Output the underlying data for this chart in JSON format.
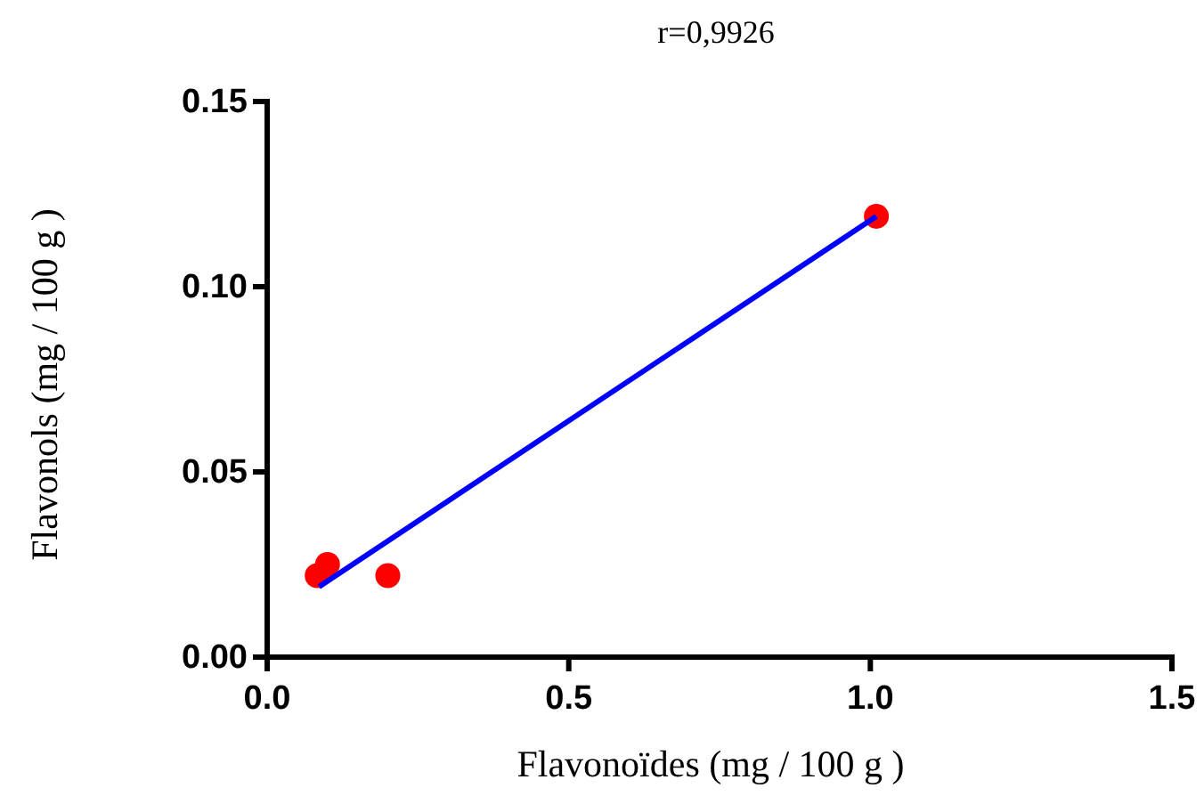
{
  "chart_data": {
    "type": "scatter",
    "title": "r=0,9926",
    "xlabel": "Flavonoïdes (mg / 100 g )",
    "ylabel": "Flavonols (mg / 100 g )",
    "xlim": [
      0,
      1.5
    ],
    "ylim": [
      0,
      0.15
    ],
    "xticks": [
      {
        "value": 0,
        "label": "0.0"
      },
      {
        "value": 0.5,
        "label": "0.5"
      },
      {
        "value": 1,
        "label": "1.0"
      },
      {
        "value": 1.5,
        "label": "1.5"
      }
    ],
    "yticks": [
      {
        "value": 0,
        "label": "0.00"
      },
      {
        "value": 0.05,
        "label": "0.05"
      },
      {
        "value": 0.1,
        "label": "0.10"
      },
      {
        "value": 0.15,
        "label": "0.15"
      }
    ],
    "grid": false,
    "series": [
      {
        "marker": "circle",
        "color": "#ff0000",
        "x": [
          0.083,
          0.1,
          0.2,
          1.01
        ],
        "values": [
          0.022,
          0.025,
          0.022,
          0.119
        ]
      },
      {
        "type": "line",
        "color": "#0000ff",
        "x": [
          0.086,
          1.01
        ],
        "values": [
          0.019,
          0.119
        ]
      }
    ]
  }
}
